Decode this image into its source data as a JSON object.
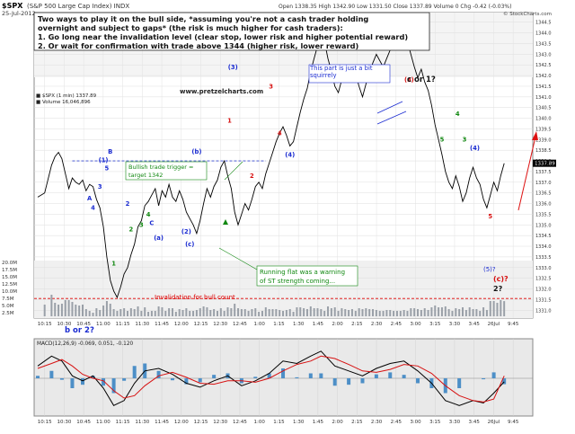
{
  "header": {
    "ticker": "$SPX",
    "name": "(S&P 500 Large Cap Index) INDX",
    "date": "25-Jul-2012",
    "quote": "Open 1338.35  High 1342.90  Low 1331.50  Close 1337.89  Volume 0  Chg -0.42 (-0.03%)",
    "watermark": "© StockCharts.com"
  },
  "callout": {
    "lines": [
      "Two ways to play it on the bull side, *assuming you're not a cash trader holding",
      "overnight and subject to gaps* (the risk is much higher for cash traders):",
      "1.  Go long near the invalidation level (clear stop, lower risk and higher potential reward)",
      "2.  Or wait for confirmation with trade above 1344 (higher risk, lower reward)"
    ]
  },
  "site": "www.pretzelcharts.com",
  "legend": {
    "price": "■ $SPX (1 min) 1337.89",
    "volume": "■ Volume 16,046,896"
  },
  "annotations": {
    "squirrely": "This part is just a bit squirrely",
    "trigger_line1": "Bullish trade trigger =",
    "trigger_line2": "target 1342",
    "flat_line1": "Running flat was a warning",
    "flat_line2": "of ST strength coming...",
    "invalidation": "Invalidation for bull count",
    "b_or_2": "b or 2?",
    "c_or_1": "c or 1?",
    "c_q": "(c)?",
    "two_q": "2?",
    "five_q": "(5)?"
  },
  "macd": {
    "label": "MACD(12,26,9) -0.069, 0.051, -0.120"
  },
  "colors": {
    "price_line": "#000000",
    "dashed": "#3344cc",
    "invalid": "#dd0000",
    "wave_blue": "#1a2bd1",
    "wave_red": "#d71111",
    "wave_green": "#118811",
    "macd_fast": "#000000",
    "macd_slow": "#d71111",
    "macd_hist": "#4d8fc7",
    "panel_bg": "#e9e9e9"
  },
  "chart_data": {
    "type": "line",
    "title": "$SPX (S&P 500 Large Cap Index) INDX",
    "timeframe": "1 min",
    "x_labels": [
      "10:15",
      "10:30",
      "10:45",
      "11:00",
      "11:15",
      "11:30",
      "11:45",
      "12:00",
      "12:15",
      "12:30",
      "12:45",
      "1:00",
      "1:15",
      "1:30",
      "1:45",
      "2:00",
      "2:15",
      "2:30",
      "2:45",
      "3:00",
      "3:15",
      "3:30",
      "3:45",
      "26Jul",
      "9:45"
    ],
    "y_ticks": [
      1331.0,
      1331.5,
      1332.0,
      1332.5,
      1333.0,
      1333.5,
      1334.0,
      1334.5,
      1335.0,
      1335.5,
      1336.0,
      1336.5,
      1337.0,
      1337.5,
      1338.0,
      1338.5,
      1339.0,
      1339.5,
      1340.0,
      1340.5,
      1341.0,
      1341.5,
      1342.0,
      1342.5,
      1343.0,
      1343.5,
      1344.0,
      1344.5
    ],
    "ylim": [
      1330.8,
      1344.7
    ],
    "volume_ticks": [
      "2.5M",
      "5.0M",
      "7.5M",
      "10.0M",
      "12.5M",
      "15.0M",
      "17.5M",
      "20.0M"
    ],
    "price_close": 1337.89,
    "bullish_trigger": 1338.0,
    "invalidation": 1331.55,
    "confirmation_level": 1344,
    "price_series": [
      [
        0,
        1336.3
      ],
      [
        4,
        1336.5
      ],
      [
        8,
        1337.8
      ],
      [
        10,
        1338.2
      ],
      [
        12,
        1338.4
      ],
      [
        14,
        1338.1
      ],
      [
        16,
        1337.4
      ],
      [
        18,
        1336.7
      ],
      [
        20,
        1337.2
      ],
      [
        22,
        1337.0
      ],
      [
        24,
        1336.9
      ],
      [
        26,
        1337.1
      ],
      [
        28,
        1336.6
      ],
      [
        30,
        1336.9
      ],
      [
        32,
        1336.8
      ],
      [
        34,
        1336.2
      ],
      [
        36,
        1335.8
      ],
      [
        38,
        1334.9
      ],
      [
        40,
        1333.5
      ],
      [
        42,
        1332.4
      ],
      [
        44,
        1331.9
      ],
      [
        46,
        1331.6
      ],
      [
        48,
        1332.1
      ],
      [
        50,
        1332.7
      ],
      [
        52,
        1333.0
      ],
      [
        54,
        1333.6
      ],
      [
        56,
        1334.1
      ],
      [
        58,
        1334.9
      ],
      [
        60,
        1335.2
      ],
      [
        62,
        1335.9
      ],
      [
        64,
        1336.1
      ],
      [
        66,
        1336.4
      ],
      [
        68,
        1336.7
      ],
      [
        70,
        1335.9
      ],
      [
        72,
        1336.6
      ],
      [
        74,
        1336.3
      ],
      [
        76,
        1336.9
      ],
      [
        78,
        1336.3
      ],
      [
        80,
        1336.1
      ],
      [
        82,
        1336.6
      ],
      [
        84,
        1336.2
      ],
      [
        86,
        1335.6
      ],
      [
        88,
        1335.3
      ],
      [
        90,
        1335.0
      ],
      [
        92,
        1334.6
      ],
      [
        94,
        1335.2
      ],
      [
        96,
        1336.0
      ],
      [
        98,
        1336.7
      ],
      [
        100,
        1336.3
      ],
      [
        102,
        1336.8
      ],
      [
        104,
        1337.1
      ],
      [
        106,
        1337.7
      ],
      [
        108,
        1338.0
      ],
      [
        110,
        1337.3
      ],
      [
        112,
        1336.7
      ],
      [
        114,
        1335.6
      ],
      [
        116,
        1335.0
      ],
      [
        118,
        1335.5
      ],
      [
        120,
        1336.0
      ],
      [
        122,
        1335.7
      ],
      [
        124,
        1336.2
      ],
      [
        126,
        1336.8
      ],
      [
        128,
        1337.0
      ],
      [
        130,
        1336.7
      ],
      [
        132,
        1337.4
      ],
      [
        134,
        1337.9
      ],
      [
        136,
        1338.4
      ],
      [
        138,
        1338.9
      ],
      [
        140,
        1339.3
      ],
      [
        142,
        1339.6
      ],
      [
        144,
        1339.2
      ],
      [
        146,
        1338.7
      ],
      [
        148,
        1338.9
      ],
      [
        150,
        1339.6
      ],
      [
        152,
        1340.3
      ],
      [
        154,
        1340.9
      ],
      [
        156,
        1341.4
      ],
      [
        158,
        1342.2
      ],
      [
        160,
        1342.8
      ],
      [
        162,
        1343.4
      ],
      [
        164,
        1343.9
      ],
      [
        166,
        1343.6
      ],
      [
        168,
        1342.8
      ],
      [
        170,
        1342.2
      ],
      [
        172,
        1341.5
      ],
      [
        174,
        1341.2
      ],
      [
        176,
        1341.8
      ],
      [
        178,
        1342.3
      ],
      [
        180,
        1341.9
      ],
      [
        182,
        1342.4
      ],
      [
        184,
        1342.1
      ],
      [
        186,
        1341.5
      ],
      [
        188,
        1341.0
      ],
      [
        190,
        1341.6
      ],
      [
        192,
        1342.1
      ],
      [
        194,
        1342.6
      ],
      [
        196,
        1343.0
      ],
      [
        198,
        1342.7
      ],
      [
        200,
        1342.4
      ],
      [
        202,
        1342.8
      ],
      [
        204,
        1343.2
      ],
      [
        206,
        1343.5
      ],
      [
        208,
        1343.8
      ],
      [
        210,
        1343.5
      ],
      [
        212,
        1343.9
      ],
      [
        214,
        1343.6
      ],
      [
        216,
        1343.0
      ],
      [
        218,
        1342.4
      ],
      [
        220,
        1341.9
      ],
      [
        222,
        1342.3
      ],
      [
        224,
        1341.7
      ],
      [
        226,
        1341.3
      ],
      [
        228,
        1340.6
      ],
      [
        230,
        1339.7
      ],
      [
        232,
        1339.0
      ],
      [
        234,
        1338.3
      ],
      [
        236,
        1337.5
      ],
      [
        238,
        1337.0
      ],
      [
        240,
        1336.7
      ],
      [
        242,
        1337.3
      ],
      [
        244,
        1336.8
      ],
      [
        246,
        1336.1
      ],
      [
        248,
        1336.5
      ],
      [
        250,
        1337.2
      ],
      [
        252,
        1337.7
      ],
      [
        254,
        1337.2
      ],
      [
        256,
        1336.9
      ],
      [
        258,
        1336.2
      ],
      [
        260,
        1335.8
      ],
      [
        262,
        1336.4
      ],
      [
        264,
        1337.0
      ],
      [
        266,
        1336.6
      ],
      [
        268,
        1337.3
      ],
      [
        270,
        1337.89
      ]
    ],
    "macd_series": [
      [
        0,
        0.25
      ],
      [
        8,
        0.45
      ],
      [
        14,
        0.35
      ],
      [
        20,
        0.05
      ],
      [
        26,
        -0.05
      ],
      [
        32,
        0.05
      ],
      [
        38,
        -0.2
      ],
      [
        44,
        -0.55
      ],
      [
        50,
        -0.45
      ],
      [
        56,
        -0.1
      ],
      [
        62,
        0.15
      ],
      [
        70,
        0.2
      ],
      [
        78,
        0.08
      ],
      [
        86,
        -0.1
      ],
      [
        94,
        -0.18
      ],
      [
        102,
        -0.05
      ],
      [
        110,
        0.05
      ],
      [
        118,
        -0.15
      ],
      [
        126,
        -0.05
      ],
      [
        134,
        0.1
      ],
      [
        142,
        0.35
      ],
      [
        150,
        0.3
      ],
      [
        158,
        0.45
      ],
      [
        164,
        0.55
      ],
      [
        172,
        0.25
      ],
      [
        180,
        0.15
      ],
      [
        188,
        0.05
      ],
      [
        196,
        0.2
      ],
      [
        204,
        0.3
      ],
      [
        212,
        0.35
      ],
      [
        220,
        0.15
      ],
      [
        228,
        -0.1
      ],
      [
        236,
        -0.45
      ],
      [
        244,
        -0.55
      ],
      [
        252,
        -0.45
      ],
      [
        258,
        -0.5
      ],
      [
        264,
        -0.3
      ],
      [
        270,
        -0.07
      ]
    ],
    "signal_series": [
      [
        0,
        0.2
      ],
      [
        8,
        0.3
      ],
      [
        14,
        0.38
      ],
      [
        20,
        0.25
      ],
      [
        26,
        0.08
      ],
      [
        32,
        0.0
      ],
      [
        38,
        -0.05
      ],
      [
        44,
        -0.25
      ],
      [
        50,
        -0.4
      ],
      [
        56,
        -0.35
      ],
      [
        62,
        -0.15
      ],
      [
        70,
        0.05
      ],
      [
        78,
        0.12
      ],
      [
        86,
        0.02
      ],
      [
        94,
        -0.1
      ],
      [
        102,
        -0.12
      ],
      [
        110,
        -0.05
      ],
      [
        118,
        -0.05
      ],
      [
        126,
        -0.08
      ],
      [
        134,
        0.0
      ],
      [
        142,
        0.15
      ],
      [
        150,
        0.28
      ],
      [
        158,
        0.35
      ],
      [
        164,
        0.45
      ],
      [
        172,
        0.4
      ],
      [
        180,
        0.28
      ],
      [
        188,
        0.15
      ],
      [
        196,
        0.12
      ],
      [
        204,
        0.18
      ],
      [
        212,
        0.28
      ],
      [
        220,
        0.25
      ],
      [
        228,
        0.1
      ],
      [
        236,
        -0.15
      ],
      [
        244,
        -0.35
      ],
      [
        252,
        -0.45
      ],
      [
        258,
        -0.48
      ],
      [
        264,
        -0.42
      ],
      [
        270,
        0.05
      ]
    ],
    "waves": [
      {
        "label": "(1)",
        "x": 38,
        "y": 1337.95,
        "color": "blue"
      },
      {
        "label": "B",
        "x": 42,
        "y": 1338.35,
        "color": "blue"
      },
      {
        "label": "5",
        "x": 40,
        "y": 1337.55,
        "color": "blue"
      },
      {
        "label": "A",
        "x": 30,
        "y": 1336.15,
        "color": "blue"
      },
      {
        "label": "3",
        "x": 36,
        "y": 1336.7,
        "color": "blue"
      },
      {
        "label": "4",
        "x": 32,
        "y": 1335.7,
        "color": "blue"
      },
      {
        "label": "2",
        "x": 52,
        "y": 1335.9,
        "color": "blue"
      },
      {
        "label": "C",
        "x": 66,
        "y": 1335.0,
        "color": "blue"
      },
      {
        "label": "(a)",
        "x": 70,
        "y": 1334.3,
        "color": "blue"
      },
      {
        "label": "(2)",
        "x": 86,
        "y": 1334.6,
        "color": "blue"
      },
      {
        "label": "(c)",
        "x": 88,
        "y": 1334.0,
        "color": "blue"
      },
      {
        "label": "(b)",
        "x": 92,
        "y": 1338.35,
        "color": "blue"
      },
      {
        "label": "(3)",
        "x": 113,
        "y": 1342.3,
        "color": "blue"
      },
      {
        "label": "(4)",
        "x": 146,
        "y": 1338.2,
        "color": "blue"
      },
      {
        "label": "(5)",
        "x": 163,
        "y": 1343.7,
        "color": "blue"
      },
      {
        "label": "(4)",
        "x": 253,
        "y": 1338.5,
        "color": "blue"
      },
      {
        "label": "1",
        "x": 111,
        "y": 1339.8,
        "color": "red"
      },
      {
        "label": "2",
        "x": 124,
        "y": 1337.2,
        "color": "red"
      },
      {
        "label": "3",
        "x": 135,
        "y": 1341.4,
        "color": "red"
      },
      {
        "label": "4",
        "x": 140,
        "y": 1339.2,
        "color": "red"
      },
      {
        "label": "(b)",
        "x": 215,
        "y": 1344.2,
        "color": "red"
      },
      {
        "label": "(a)",
        "x": 215,
        "y": 1341.7,
        "color": "red"
      },
      {
        "label": "5",
        "x": 262,
        "y": 1335.3,
        "color": "red"
      },
      {
        "label": "1",
        "x": 44,
        "y": 1333.1,
        "color": "green"
      },
      {
        "label": "2",
        "x": 54,
        "y": 1334.7,
        "color": "green"
      },
      {
        "label": "3",
        "x": 60,
        "y": 1334.9,
        "color": "green"
      },
      {
        "label": "4",
        "x": 64,
        "y": 1335.4,
        "color": "green"
      },
      {
        "label": "5",
        "x": 234,
        "y": 1338.9,
        "color": "green"
      },
      {
        "label": "4",
        "x": 243,
        "y": 1340.1,
        "color": "green"
      },
      {
        "label": "3",
        "x": 247,
        "y": 1338.9,
        "color": "green"
      }
    ]
  }
}
